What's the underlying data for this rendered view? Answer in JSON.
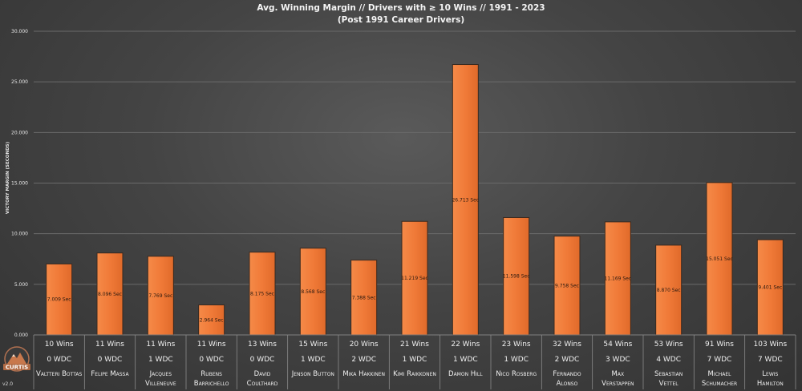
{
  "chart_data": {
    "type": "bar",
    "title": "Avg. Winning Margin // Drivers with ≥ 10 Wins // 1991 - 2023",
    "subtitle": "(Post 1991 Career Drivers)",
    "ylabel": "VICTORY MARGIN (SECONDS)",
    "ylim": [
      0,
      30
    ],
    "yticks": [
      "0.000",
      "5.000",
      "10.000",
      "15.000",
      "20.000",
      "25.000",
      "30.000"
    ],
    "grid": true,
    "categories": [
      "VALTTERI BOTTAS",
      "FELIPE MASSA",
      "JACQUES VILLENEUVE",
      "RUBENS BARRICHELLO",
      "DAVID COULTHARD",
      "JENSON BUTTON",
      "MIKA HAKKINEN",
      "KIMI RAIKKONEN",
      "DAMON HILL",
      "NICO ROSBERG",
      "FERNANDO ALONSO",
      "MAX VERSTAPPEN",
      "SEBASTIAN VETTEL",
      "MICHAEL SCHUMACHER",
      "LEWIS HAMILTON"
    ],
    "driver_lines": [
      [
        "Valtteri Bottas"
      ],
      [
        "Felipe Massa"
      ],
      [
        "Jacques",
        "Villeneuve"
      ],
      [
        "Rubens",
        "Barrichello"
      ],
      [
        "David",
        "Coulthard"
      ],
      [
        "Jenson Button"
      ],
      [
        "Mika Hakkinen"
      ],
      [
        "Kimi Raikkonen"
      ],
      [
        "Damon Hill"
      ],
      [
        "Nico Rosberg"
      ],
      [
        "Fernando",
        "Alonso"
      ],
      [
        "Max",
        "Verstappen"
      ],
      [
        "Sebastian",
        "Vettel"
      ],
      [
        "Michael",
        "Schumacher"
      ],
      [
        "Lewis",
        "Hamilton"
      ]
    ],
    "values": [
      7.009,
      8.096,
      7.769,
      2.964,
      8.175,
      8.568,
      7.388,
      11.219,
      26.713,
      11.598,
      9.758,
      11.169,
      8.87,
      15.051,
      9.401
    ],
    "value_labels": [
      "7.009 Sec",
      "8.096 Sec",
      "7.769 Sec",
      "2.964 Sec",
      "8.175 Sec",
      "8.568 Sec",
      "7.388 Sec",
      "11.219 Sec",
      "26.713 Sec",
      "11.598 Sec",
      "9.758 Sec",
      "11.169 Sec",
      "8.870 Sec",
      "15.051 Sec",
      "9.401 Sec"
    ],
    "wins": [
      "10 Wins",
      "11 Wins",
      "11 Wins",
      "11 Wins",
      "13 Wins",
      "15 Wins",
      "20 Wins",
      "21 Wins",
      "22 Wins",
      "23 Wins",
      "32 Wins",
      "54 Wins",
      "53 Wins",
      "91 Wins",
      "103 Wins"
    ],
    "wdc": [
      "0 WDC",
      "0 WDC",
      "1 WDC",
      "0 WDC",
      "0 WDC",
      "1 WDC",
      "2 WDC",
      "1 WDC",
      "1 WDC",
      "1 WDC",
      "2 WDC",
      "3 WDC",
      "4 WDC",
      "7 WDC",
      "7 WDC"
    ],
    "bar_color": "#f07a38"
  },
  "logo": {
    "text": "CURTIS",
    "icon": "mountain-logo-icon"
  },
  "version": "v2.0"
}
